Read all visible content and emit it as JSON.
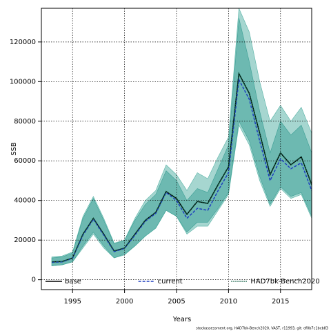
{
  "chart_data": {
    "type": "line",
    "xlabel": "Years",
    "ylabel": "SSB",
    "footnote": "stockassessment.org, HAD7bk-Bench2020, VAST, r11993, git: df0b7c1bcb83",
    "x": [
      1993,
      1994,
      1995,
      1996,
      1997,
      1998,
      1999,
      2000,
      2001,
      2002,
      2003,
      2004,
      2005,
      2006,
      2007,
      2008,
      2009,
      2010,
      2011,
      2012,
      2013,
      2014,
      2015,
      2016,
      2017,
      2018
    ],
    "xlim": [
      1992,
      2018
    ],
    "xticks": [
      1995,
      2000,
      2005,
      2010,
      2015
    ],
    "ylim": [
      -5000,
      137000
    ],
    "yticks": [
      0,
      20000,
      40000,
      60000,
      80000,
      100000,
      120000
    ],
    "grid": true,
    "legend": "bottom",
    "series": [
      {
        "name": "base",
        "color": "#000000",
        "linestyle": "solid",
        "band_color": "#1a8a80",
        "values": [
          9000,
          9200,
          11000,
          23000,
          31000,
          23000,
          14500,
          16000,
          23000,
          30000,
          34000,
          44500,
          41000,
          33000,
          39500,
          38500,
          48000,
          57000,
          104000,
          94000,
          74000,
          53000,
          64000,
          58000,
          62000,
          48000
        ],
        "upper": [
          11000,
          11500,
          13500,
          31000,
          41000,
          30000,
          18000,
          20000,
          30000,
          38000,
          43000,
          55000,
          50000,
          40000,
          46000,
          44000,
          56000,
          68000,
          132000,
          110000,
          85000,
          64000,
          80000,
          73000,
          78000,
          64000
        ],
        "lower": [
          7000,
          7500,
          9000,
          17000,
          24000,
          17000,
          11000,
          13000,
          17000,
          22000,
          26000,
          35000,
          32000,
          24000,
          29000,
          29000,
          36000,
          44000,
          80000,
          70000,
          52000,
          38000,
          47000,
          42000,
          44000,
          32000
        ]
      },
      {
        "name": "current",
        "color": "#1f3fbf",
        "linestyle": "dashed",
        "band_color": "#3aa596",
        "values": [
          8800,
          9000,
          10800,
          22500,
          30500,
          22500,
          14200,
          15800,
          22500,
          29500,
          33500,
          44000,
          40000,
          31000,
          36000,
          35000,
          45000,
          54000,
          101000,
          91000,
          70000,
          50000,
          61000,
          56000,
          59000,
          45000
        ],
        "upper": [
          11500,
          12000,
          14000,
          32000,
          42000,
          31000,
          18500,
          20000,
          31000,
          40000,
          45000,
          58000,
          53000,
          45000,
          54000,
          51000,
          62000,
          72000,
          137000,
          125000,
          100000,
          80000,
          88000,
          80000,
          87000,
          74000
        ],
        "lower": [
          7000,
          7500,
          9000,
          16000,
          23000,
          16000,
          11000,
          12500,
          17000,
          22000,
          26000,
          35000,
          32000,
          23000,
          27000,
          27000,
          35000,
          43000,
          78000,
          68000,
          50000,
          37000,
          46000,
          41000,
          43000,
          31000
        ]
      },
      {
        "name": "HAD7bk-Bench2020",
        "color": "#0a5a40",
        "linestyle": "dotted",
        "values": [
          9000,
          9200,
          11000,
          23000,
          31000,
          23000,
          14500,
          16000,
          23000,
          30000,
          34000,
          44500,
          41000,
          33000,
          39500,
          38500,
          48000,
          57000,
          104000,
          94000,
          74000,
          53000,
          64000,
          58000,
          62000,
          48000
        ]
      }
    ]
  }
}
